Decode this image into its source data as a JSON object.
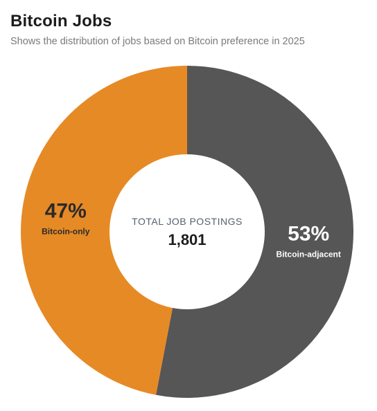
{
  "chart_data": {
    "type": "pie",
    "title": "Bitcoin Jobs",
    "subtitle": "Shows the distribution of jobs based on Bitcoin preference in 2025",
    "center_label": "TOTAL JOB POSTINGS",
    "center_value": "1,801",
    "slices": [
      {
        "name": "Bitcoin-adjacent",
        "value": 53,
        "label": "53%",
        "color": "#565656"
      },
      {
        "name": "Bitcoin-only",
        "value": 47,
        "label": "47%",
        "color": "#e68a26"
      }
    ]
  }
}
